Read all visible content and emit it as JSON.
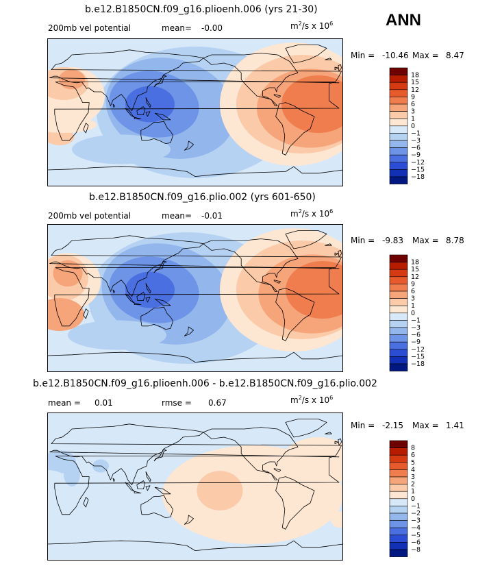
{
  "season": "ANN",
  "units_base": "m",
  "units_sup": "2",
  "units_mid": "/s x 10",
  "units_exp": "6",
  "chart_data": [
    {
      "type": "heatmap",
      "title": "b.e12.B1850CN.f09_g16.plioenh.006 (yrs 21-30)",
      "variable": "200mb vel potential",
      "stat1_label": "mean=",
      "stat1_value": "-0.00",
      "min_label": "Min =",
      "min": "-10.46",
      "max_label": "Max =",
      "max": "8.47",
      "levels": [
        "18",
        "15",
        "12",
        "9",
        "6",
        "3",
        "1",
        "0",
        "-1",
        "-3",
        "-6",
        "-9",
        "-12",
        "-15",
        "-18"
      ],
      "colors": [
        "#6e0000",
        "#b81c00",
        "#d63a12",
        "#e65a2c",
        "#f07d4e",
        "#f6a47a",
        "#fbcaa8",
        "#fde6d2",
        "#d7e8f8",
        "#b6d2f3",
        "#93b6ed",
        "#6d94e7",
        "#4a6fe0",
        "#2a4dd4",
        "#1230b6",
        "#001880"
      ]
    },
    {
      "type": "heatmap",
      "title": "b.e12.B1850CN.f09_g16.plio.002 (yrs 601-650)",
      "variable": "200mb vel potential",
      "stat1_label": "mean=",
      "stat1_value": "-0.01",
      "min_label": "Min =",
      "min": "-9.83",
      "max_label": "Max =",
      "max": "8.78",
      "levels": [
        "18",
        "15",
        "12",
        "9",
        "6",
        "3",
        "1",
        "0",
        "-1",
        "-3",
        "-6",
        "-9",
        "-12",
        "-15",
        "-18"
      ],
      "colors": [
        "#6e0000",
        "#b81c00",
        "#d63a12",
        "#e65a2c",
        "#f07d4e",
        "#f6a47a",
        "#fbcaa8",
        "#fde6d2",
        "#d7e8f8",
        "#b6d2f3",
        "#93b6ed",
        "#6d94e7",
        "#4a6fe0",
        "#2a4dd4",
        "#1230b6",
        "#001880"
      ]
    },
    {
      "type": "heatmap",
      "title": "b.e12.B1850CN.f09_g16.plioenh.006 - b.e12.B1850CN.f09_g16.plio.002",
      "stat1_label": "mean =",
      "stat1_value": "0.01",
      "stat2_label": "rmse =",
      "stat2_value": "0.67",
      "min_label": "Min =",
      "min": "-2.15",
      "max_label": "Max =",
      "max": "1.41",
      "levels": [
        "8",
        "6",
        "5",
        "4",
        "3",
        "2",
        "1",
        "0",
        "-1",
        "-2",
        "-3",
        "-4",
        "-5",
        "-6",
        "-8"
      ],
      "colors": [
        "#6e0000",
        "#b81c00",
        "#d63a12",
        "#e65a2c",
        "#f07d4e",
        "#f6a47a",
        "#fbcaa8",
        "#fde6d2",
        "#d7e8f8",
        "#b6d2f3",
        "#93b6ed",
        "#6d94e7",
        "#4a6fe0",
        "#2a4dd4",
        "#1230b6",
        "#001880"
      ]
    }
  ]
}
